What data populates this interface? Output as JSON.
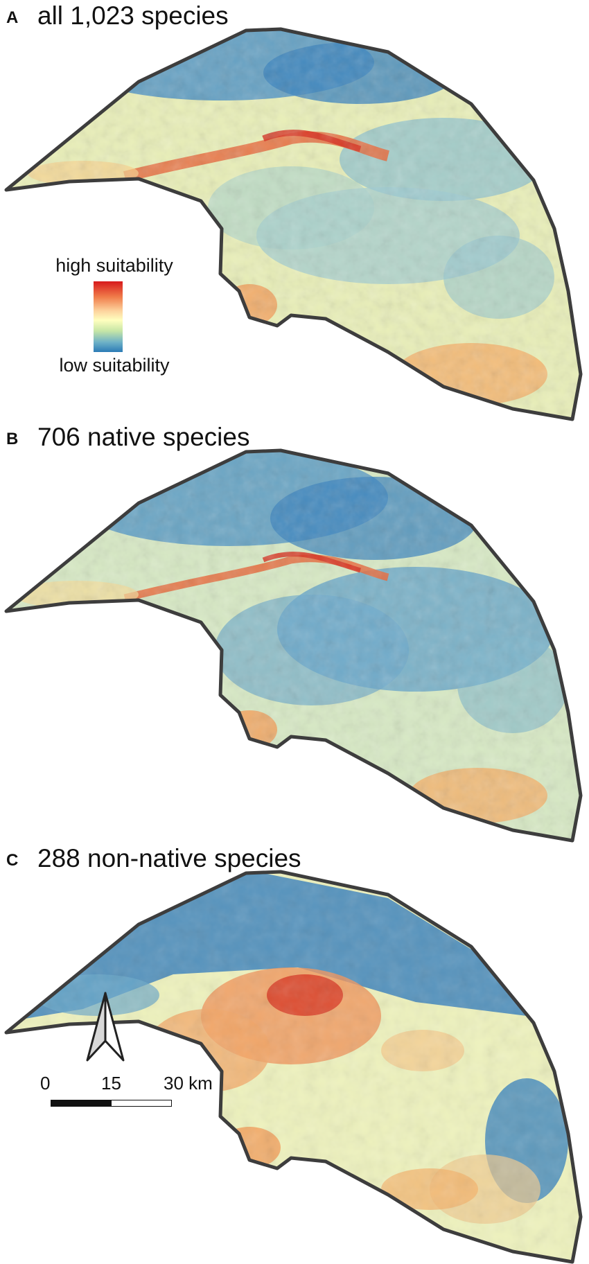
{
  "panels": [
    {
      "letter": "A",
      "title": "all 1,023 species"
    },
    {
      "letter": "B",
      "title": "706 native species"
    },
    {
      "letter": "C",
      "title": "288 non-native species"
    }
  ],
  "legend": {
    "high_label": "high suitability",
    "low_label": "low suitability",
    "colors": [
      "#d7191c",
      "#fdae61",
      "#ffffbf",
      "#abd9e9",
      "#2c7bb6"
    ]
  },
  "scale_bar": {
    "ticks": [
      "0",
      "15",
      "30 km"
    ]
  },
  "north_arrow": {
    "icon": "north-arrow-icon"
  }
}
